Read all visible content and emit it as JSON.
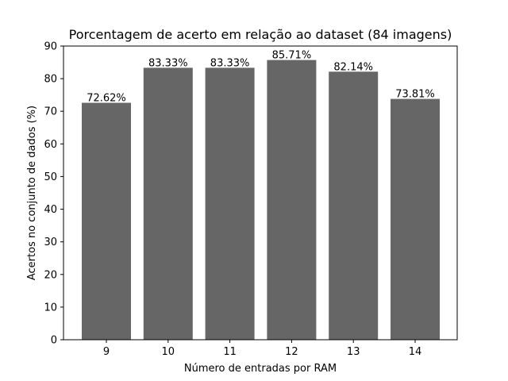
{
  "chart_data": {
    "type": "bar",
    "title": "Porcentagem de acerto em relação ao dataset (84 imagens)",
    "xlabel": "Número de entradas por RAM",
    "ylabel": "Acertos no conjunto de dados (%)",
    "categories": [
      "9",
      "10",
      "11",
      "12",
      "13",
      "14"
    ],
    "values": [
      72.62,
      83.33,
      83.33,
      85.71,
      82.14,
      73.81
    ],
    "data_labels": [
      "72.62%",
      "83.33%",
      "83.33%",
      "85.71%",
      "82.14%",
      "73.81%"
    ],
    "ylim": [
      0,
      90
    ],
    "yticks": [
      0,
      10,
      20,
      30,
      40,
      50,
      60,
      70,
      80,
      90
    ],
    "ytick_labels": [
      "0",
      "10",
      "20",
      "30",
      "40",
      "50",
      "60",
      "70",
      "80",
      "90"
    ],
    "bar_color": "#666666",
    "grid": false,
    "legend": "none"
  }
}
